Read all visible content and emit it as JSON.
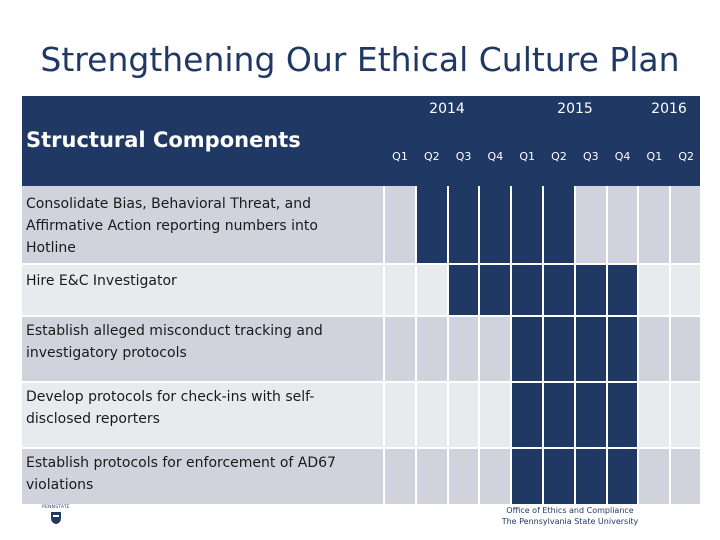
{
  "title": "Strengthening Our Ethical Culture Plan",
  "header": {
    "label": "Structural Components",
    "years": [
      "2014",
      "2015",
      "2016"
    ],
    "quarters": [
      "Q1",
      "Q2",
      "Q3",
      "Q4",
      "Q1",
      "Q2",
      "Q3",
      "Q4",
      "Q1",
      "Q2"
    ]
  },
  "rows": [
    {
      "label": "Consolidate Bias, Behavioral Threat, and Affirmative Action reporting numbers into Hotline",
      "active": [
        1,
        2,
        3,
        4,
        5
      ]
    },
    {
      "label": "Hire E&C Investigator",
      "active": [
        2,
        3,
        4,
        5,
        6,
        7
      ]
    },
    {
      "label": "Establish alleged misconduct tracking and investigatory protocols",
      "active": [
        4,
        5,
        6,
        7
      ]
    },
    {
      "label": "Develop protocols for check-ins with self-disclosed reporters",
      "active": [
        4,
        5,
        6,
        7
      ]
    },
    {
      "label": "Establish protocols for enforcement of AD67 violations",
      "active": [
        4,
        5,
        6,
        7
      ]
    }
  ],
  "footer": {
    "line1": "Office of Ethics and Compliance",
    "line2": "The Pennsylvania State University"
  },
  "logo": {
    "text": "PENNSTATE",
    "icon": "penn-state-shield-icon"
  },
  "colors": {
    "navy": "#1f3864",
    "row_dark": "#d0d3dc",
    "row_light": "#e8eaee"
  }
}
